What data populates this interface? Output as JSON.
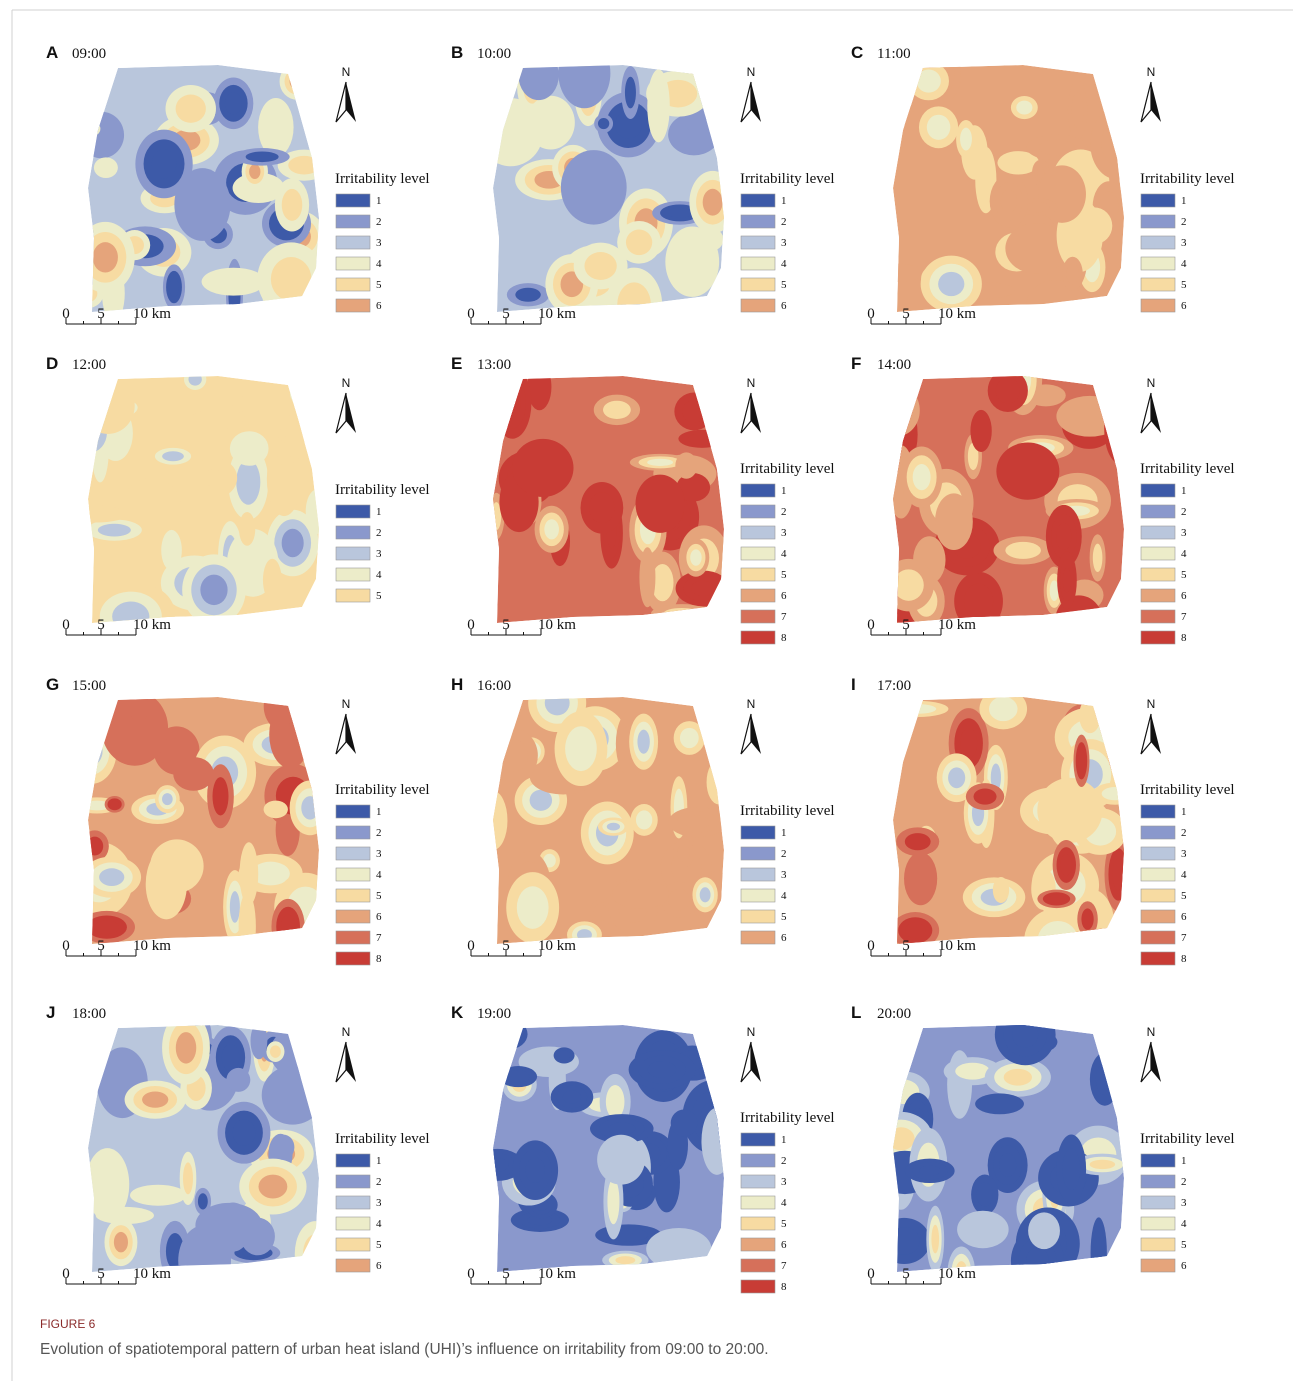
{
  "figure_label": "FIGURE 6",
  "caption": "Evolution of spatiotemporal pattern of urban heat island (UHI)’s influence on irritability from 09:00 to 20:00.",
  "legend_title": "Irritability level",
  "north": "N",
  "scale_labels": [
    "0",
    "5",
    "10 km"
  ],
  "panels": [
    {
      "letter": "A",
      "time": "09:00",
      "legend": [
        {
          "label": "1",
          "color": "#3d5aa8"
        },
        {
          "label": "2",
          "color": "#8a98cc"
        },
        {
          "label": "3",
          "color": "#b9c6dc"
        },
        {
          "label": "4",
          "color": "#ececc9"
        },
        {
          "label": "5",
          "color": "#f7dba2"
        },
        {
          "label": "6",
          "color": "#e5a47b"
        }
      ]
    },
    {
      "letter": "B",
      "time": "10:00",
      "legend": [
        {
          "label": "1",
          "color": "#3d5aa8"
        },
        {
          "label": "2",
          "color": "#8a98cc"
        },
        {
          "label": "3",
          "color": "#b9c6dc"
        },
        {
          "label": "4",
          "color": "#ececc9"
        },
        {
          "label": "5",
          "color": "#f7dba2"
        },
        {
          "label": "6",
          "color": "#e5a47b"
        }
      ]
    },
    {
      "letter": "C",
      "time": "11:00",
      "legend": [
        {
          "label": "1",
          "color": "#3d5aa8"
        },
        {
          "label": "2",
          "color": "#8a98cc"
        },
        {
          "label": "3",
          "color": "#b9c6dc"
        },
        {
          "label": "4",
          "color": "#ececc9"
        },
        {
          "label": "5",
          "color": "#f7dba2"
        },
        {
          "label": "6",
          "color": "#e5a47b"
        }
      ]
    },
    {
      "letter": "D",
      "time": "12:00",
      "legend": [
        {
          "label": "1",
          "color": "#3d5aa8"
        },
        {
          "label": "2",
          "color": "#8a98cc"
        },
        {
          "label": "3",
          "color": "#b9c6dc"
        },
        {
          "label": "4",
          "color": "#ececc9"
        },
        {
          "label": "5",
          "color": "#f7dba2"
        }
      ]
    },
    {
      "letter": "E",
      "time": "13:00",
      "legend": [
        {
          "label": "1",
          "color": "#3d5aa8"
        },
        {
          "label": "2",
          "color": "#8a98cc"
        },
        {
          "label": "3",
          "color": "#b9c6dc"
        },
        {
          "label": "4",
          "color": "#ececc9"
        },
        {
          "label": "5",
          "color": "#f7dba2"
        },
        {
          "label": "6",
          "color": "#e5a47b"
        },
        {
          "label": "7",
          "color": "#d6705a"
        },
        {
          "label": "8",
          "color": "#c83c35"
        }
      ]
    },
    {
      "letter": "F",
      "time": "14:00",
      "legend": [
        {
          "label": "1",
          "color": "#3d5aa8"
        },
        {
          "label": "2",
          "color": "#8a98cc"
        },
        {
          "label": "3",
          "color": "#b9c6dc"
        },
        {
          "label": "4",
          "color": "#ececc9"
        },
        {
          "label": "5",
          "color": "#f7dba2"
        },
        {
          "label": "6",
          "color": "#e5a47b"
        },
        {
          "label": "7",
          "color": "#d6705a"
        },
        {
          "label": "8",
          "color": "#c83c35"
        }
      ]
    },
    {
      "letter": "G",
      "time": "15:00",
      "legend": [
        {
          "label": "1",
          "color": "#3d5aa8"
        },
        {
          "label": "2",
          "color": "#8a98cc"
        },
        {
          "label": "3",
          "color": "#b9c6dc"
        },
        {
          "label": "4",
          "color": "#ececc9"
        },
        {
          "label": "5",
          "color": "#f7dba2"
        },
        {
          "label": "6",
          "color": "#e5a47b"
        },
        {
          "label": "7",
          "color": "#d6705a"
        },
        {
          "label": "8",
          "color": "#c83c35"
        }
      ]
    },
    {
      "letter": "H",
      "time": "16:00",
      "legend": [
        {
          "label": "1",
          "color": "#3d5aa8"
        },
        {
          "label": "2",
          "color": "#8a98cc"
        },
        {
          "label": "3",
          "color": "#b9c6dc"
        },
        {
          "label": "4",
          "color": "#ececc9"
        },
        {
          "label": "5",
          "color": "#f7dba2"
        },
        {
          "label": "6",
          "color": "#e5a47b"
        }
      ]
    },
    {
      "letter": "I",
      "time": "17:00",
      "legend": [
        {
          "label": "1",
          "color": "#3d5aa8"
        },
        {
          "label": "2",
          "color": "#8a98cc"
        },
        {
          "label": "3",
          "color": "#b9c6dc"
        },
        {
          "label": "4",
          "color": "#ececc9"
        },
        {
          "label": "5",
          "color": "#f7dba2"
        },
        {
          "label": "6",
          "color": "#e5a47b"
        },
        {
          "label": "7",
          "color": "#d6705a"
        },
        {
          "label": "8",
          "color": "#c83c35"
        }
      ]
    },
    {
      "letter": "J",
      "time": "18:00",
      "legend": [
        {
          "label": "1",
          "color": "#3d5aa8"
        },
        {
          "label": "2",
          "color": "#8a98cc"
        },
        {
          "label": "3",
          "color": "#b9c6dc"
        },
        {
          "label": "4",
          "color": "#ececc9"
        },
        {
          "label": "5",
          "color": "#f7dba2"
        },
        {
          "label": "6",
          "color": "#e5a47b"
        }
      ]
    },
    {
      "letter": "K",
      "time": "19:00",
      "legend": [
        {
          "label": "1",
          "color": "#3d5aa8"
        },
        {
          "label": "2",
          "color": "#8a98cc"
        },
        {
          "label": "3",
          "color": "#b9c6dc"
        },
        {
          "label": "4",
          "color": "#ececc9"
        },
        {
          "label": "5",
          "color": "#f7dba2"
        },
        {
          "label": "6",
          "color": "#e5a47b"
        },
        {
          "label": "7",
          "color": "#d6705a"
        },
        {
          "label": "8",
          "color": "#c83c35"
        }
      ]
    },
    {
      "letter": "L",
      "time": "20:00",
      "legend": [
        {
          "label": "1",
          "color": "#3d5aa8"
        },
        {
          "label": "2",
          "color": "#8a98cc"
        },
        {
          "label": "3",
          "color": "#b9c6dc"
        },
        {
          "label": "4",
          "color": "#ececc9"
        },
        {
          "label": "5",
          "color": "#f7dba2"
        },
        {
          "label": "6",
          "color": "#e5a47b"
        }
      ]
    }
  ]
}
